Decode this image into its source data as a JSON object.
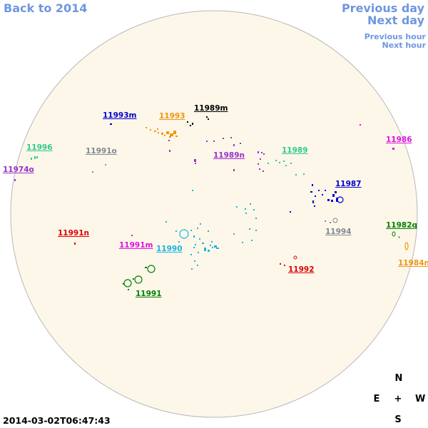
{
  "nav": {
    "back": "Back to 2014",
    "previous_day": "Previous day",
    "next_day": "Next day",
    "previous_hour": "Previous hour",
    "next_hour": "Next hour"
  },
  "timestamp": "2014-03-02T06:47:43",
  "compass": {
    "n": "N",
    "s": "S",
    "e": "E",
    "w": "W",
    "center": "+"
  },
  "colors": {
    "nav": "#6f97df",
    "disk_fill": "#fdf7ea",
    "disk_stroke": "#b8b8b8"
  },
  "regions": [
    {
      "id": "r11993m",
      "label": "11993m",
      "color": "#0000cc"
    },
    {
      "id": "r11993",
      "label": "11993",
      "color": "#f0960f"
    },
    {
      "id": "r11989m",
      "label": "11989m",
      "color": "#000000"
    },
    {
      "id": "r11996",
      "label": "11996",
      "color": "#2ec98a"
    },
    {
      "id": "r11991o",
      "label": "11991o",
      "color": "#808890"
    },
    {
      "id": "r11989n",
      "label": "11989n",
      "color": "#9b30c8"
    },
    {
      "id": "r11989",
      "label": "11989",
      "color": "#2ec98a"
    },
    {
      "id": "r11986",
      "label": "11986",
      "color": "#e010e0"
    },
    {
      "id": "r11974o",
      "label": "11974o",
      "color": "#9b30c8"
    },
    {
      "id": "r11987",
      "label": "11987",
      "color": "#0000cc"
    },
    {
      "id": "r11982q",
      "label": "11982q",
      "color": "#008000"
    },
    {
      "id": "r11994",
      "label": "11994",
      "color": "#808890"
    },
    {
      "id": "r11991n",
      "label": "11991n",
      "color": "#dd0000"
    },
    {
      "id": "r11991m",
      "label": "11991m",
      "color": "#e010e0"
    },
    {
      "id": "r11990",
      "label": "11990",
      "color": "#1ab4e0"
    },
    {
      "id": "r11984n",
      "label": "11984n",
      "color": "#f0960f"
    },
    {
      "id": "r11992",
      "label": "11992",
      "color": "#dd0000"
    },
    {
      "id": "r11991",
      "label": "11991",
      "color": "#008000"
    }
  ]
}
